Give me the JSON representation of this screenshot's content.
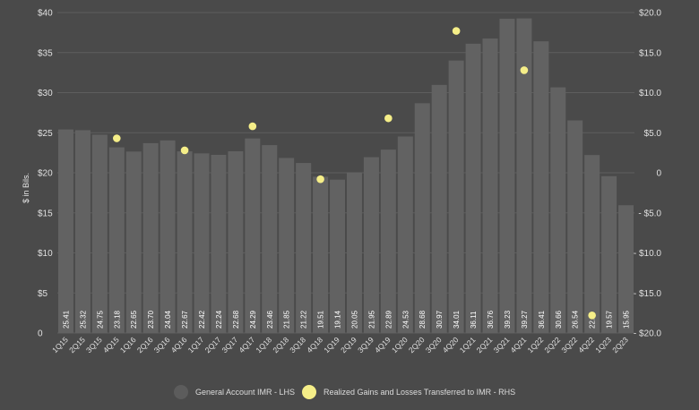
{
  "chart_data": {
    "type": "bar",
    "ylabel": "$ in Bils.",
    "left_axis": {
      "ticks": [
        "$40",
        "$35",
        "$30",
        "$25",
        "$20",
        "$15",
        "$10",
        "$5",
        "0"
      ],
      "ylim": [
        0,
        40
      ]
    },
    "right_axis": {
      "ticks": [
        "$20.0",
        "$15.0",
        "$10.0",
        "$5.0",
        "0",
        "- $5.0",
        "- $10.0",
        "- $15.0",
        "- $20.0"
      ],
      "ylim": [
        -20,
        20
      ]
    },
    "categories": [
      "1Q15",
      "2Q15",
      "3Q15",
      "4Q15",
      "1Q16",
      "2Q16",
      "3Q16",
      "4Q16",
      "1Q17",
      "2Q17",
      "3Q17",
      "4Q17",
      "1Q18",
      "2Q18",
      "3Q18",
      "4Q18",
      "1Q19",
      "2Q19",
      "3Q19",
      "4Q19",
      "1Q20",
      "2Q20",
      "3Q20",
      "4Q20",
      "1Q21",
      "2Q21",
      "3Q21",
      "4Q21",
      "1Q22",
      "2Q22",
      "3Q22",
      "4Q22",
      "1Q23",
      "2Q23"
    ],
    "series": [
      {
        "name": "General Account IMR - LHS",
        "type": "bar",
        "color": "#626262",
        "values": [
          25.41,
          25.32,
          24.75,
          23.18,
          22.65,
          23.7,
          24.04,
          22.67,
          22.42,
          22.24,
          22.68,
          24.29,
          23.46,
          21.85,
          21.22,
          19.51,
          19.14,
          20.05,
          21.95,
          22.89,
          24.53,
          28.68,
          30.97,
          34.01,
          36.11,
          36.76,
          39.23,
          39.27,
          36.41,
          30.66,
          26.54,
          22.22,
          19.57,
          15.95
        ],
        "labels": [
          "25.41",
          "25.32",
          "24.75",
          "23.18",
          "22.65",
          "23.70",
          "24.04",
          "22.67",
          "22.42",
          "22.24",
          "22.68",
          "24.29",
          "23.46",
          "21.85",
          "21.22",
          "19.51",
          "19.14",
          "20.05",
          "21.95",
          "22.89",
          "24.53",
          "28.68",
          "30.97",
          "34.01",
          "36.11",
          "36.76",
          "39.23",
          "39.27",
          "36.41",
          "30.66",
          "26.54",
          "22.2",
          "19.57",
          "15.95"
        ]
      },
      {
        "name": "Realized Gains and Losses Transferred to IMR - RHS",
        "type": "scatter",
        "axis": "right",
        "color": "#f5ee88",
        "points": [
          {
            "x": "4Q15",
            "y": 4.3
          },
          {
            "x": "4Q16",
            "y": 2.8
          },
          {
            "x": "4Q17",
            "y": 5.8
          },
          {
            "x": "4Q18",
            "y": -0.8
          },
          {
            "x": "4Q19",
            "y": 6.8
          },
          {
            "x": "4Q20",
            "y": 17.7
          },
          {
            "x": "4Q21",
            "y": 12.8
          },
          {
            "x": "4Q22",
            "y": -17.8
          }
        ]
      }
    ],
    "grid": true,
    "legend_position": "bottom"
  }
}
